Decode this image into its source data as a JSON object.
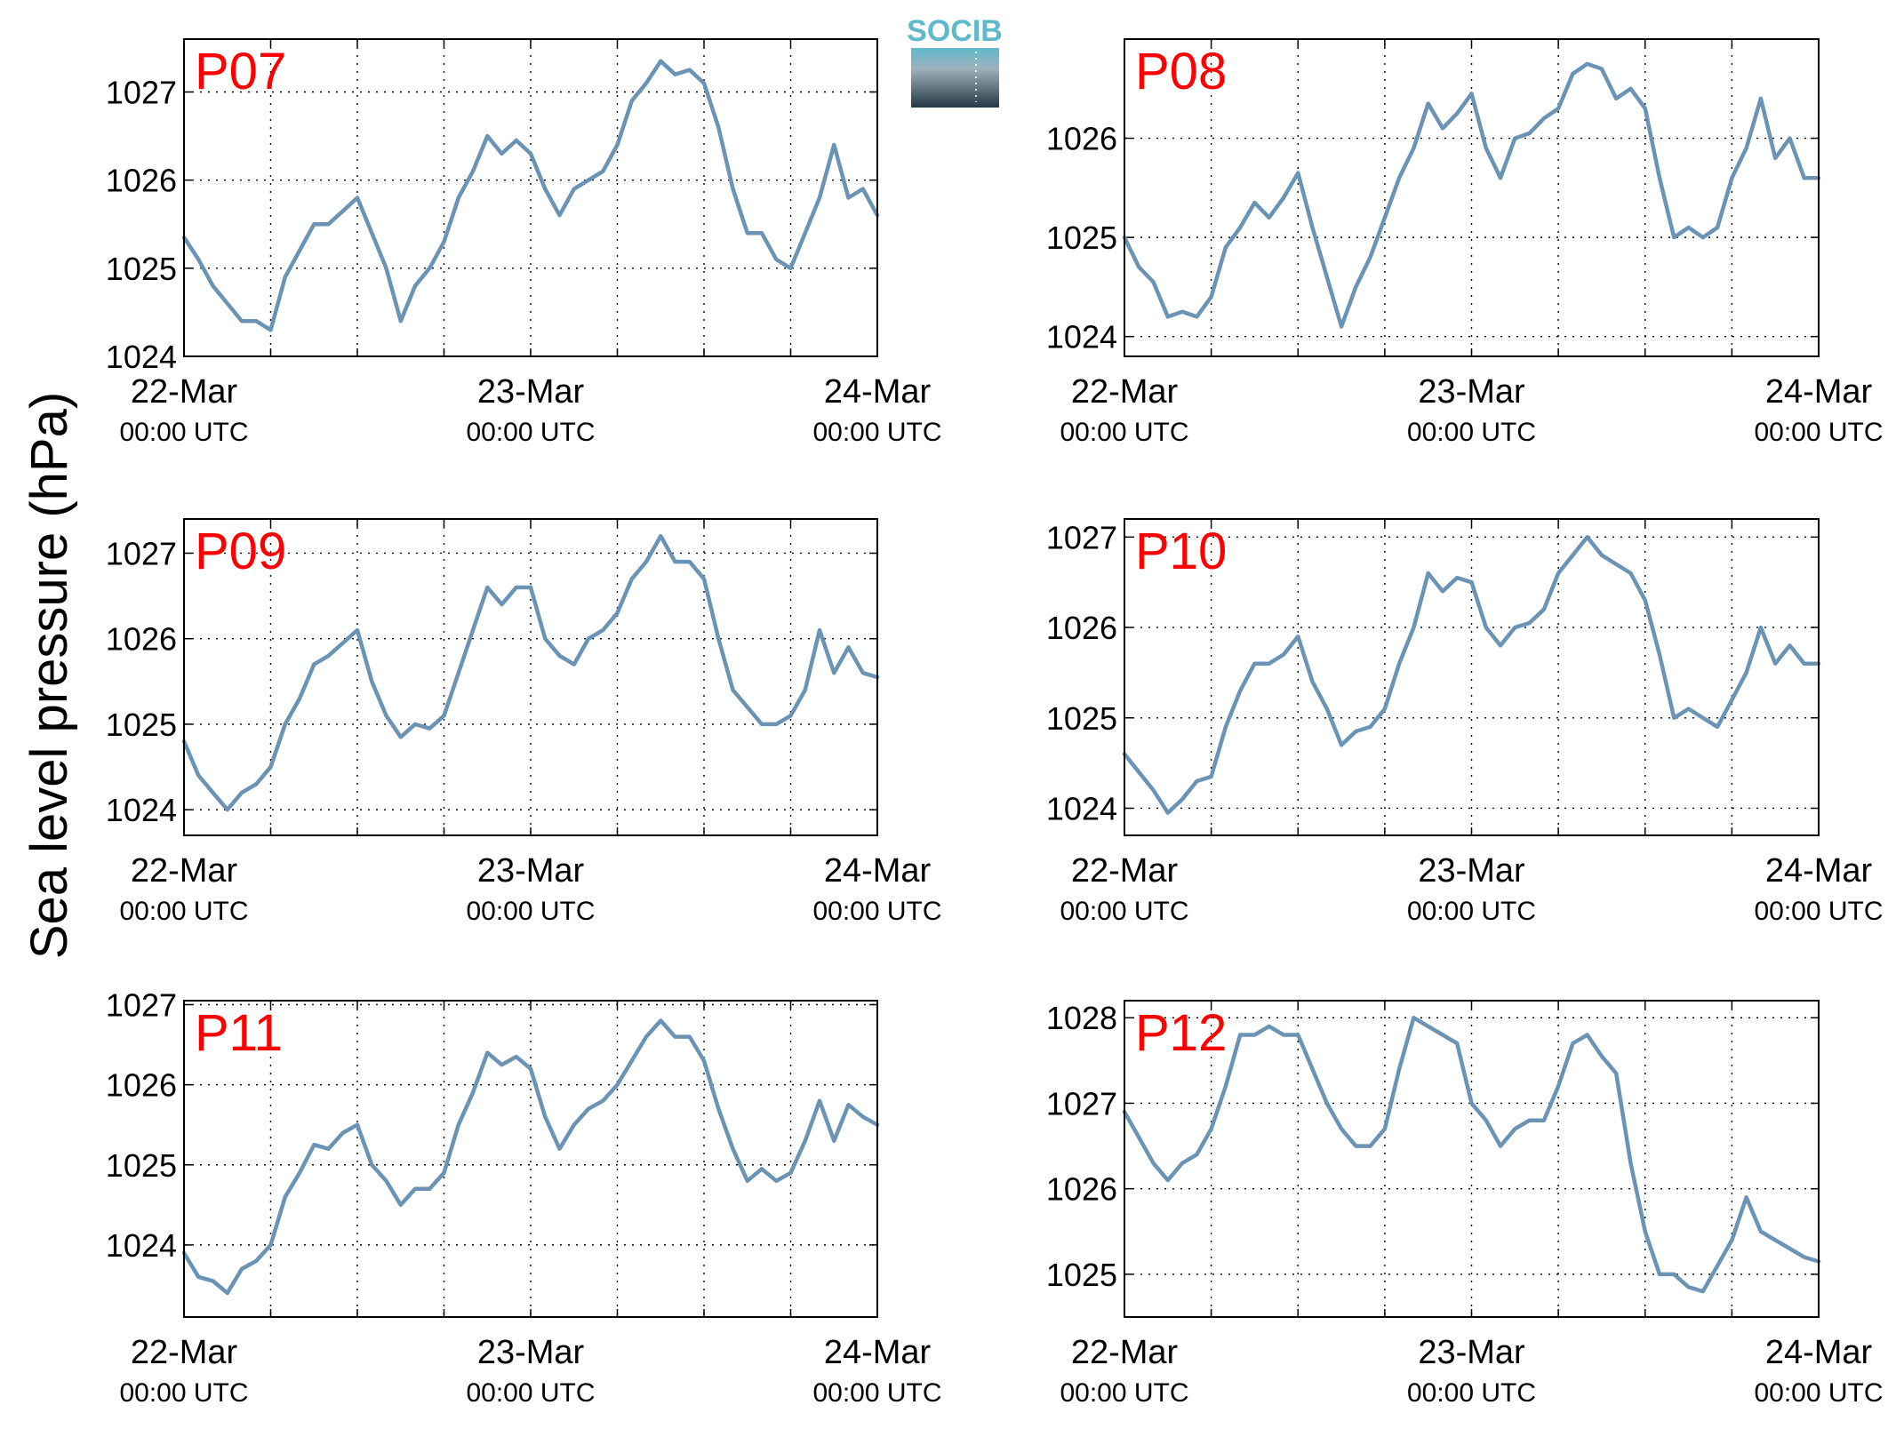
{
  "figure": {
    "ylabel": "Sea level pressure (hPa)",
    "logo_text": "SOCIB",
    "colors": {
      "line": "#6b93b5",
      "title": "#ff0000",
      "logo_top": "#5fb9cc",
      "logo_bottom": "#233844"
    }
  },
  "chart_data": [
    {
      "type": "line",
      "title": "P07",
      "x_ticks": [
        {
          "main": "22-Mar",
          "sub": "00:00 UTC"
        },
        {
          "main": "23-Mar",
          "sub": "00:00 UTC"
        },
        {
          "main": "24-Mar",
          "sub": "00:00 UTC"
        }
      ],
      "xlim_hours": [
        0,
        48
      ],
      "ylim": [
        1024,
        1027.6
      ],
      "y_ticks": [
        1024,
        1025,
        1026,
        1027
      ],
      "grid": true,
      "series": [
        {
          "x_hours": [
            0,
            1,
            2,
            3,
            4,
            5,
            6,
            7,
            8,
            9,
            10,
            11,
            12,
            13,
            14,
            15,
            16,
            17,
            18,
            19,
            20,
            21,
            22,
            23,
            24,
            25,
            26,
            27,
            28,
            29,
            30,
            31,
            32,
            33,
            34,
            35,
            36,
            37,
            38,
            39,
            40,
            41,
            42,
            43,
            44,
            45,
            46,
            47,
            48
          ],
          "values": [
            1025.35,
            1025.1,
            1024.8,
            1024.6,
            1024.4,
            1024.4,
            1024.3,
            1024.9,
            1025.2,
            1025.5,
            1025.5,
            1025.65,
            1025.8,
            1025.4,
            1025.0,
            1024.4,
            1024.8,
            1025.0,
            1025.3,
            1025.8,
            1026.1,
            1026.5,
            1026.3,
            1026.45,
            1026.3,
            1025.9,
            1025.6,
            1025.9,
            1026.0,
            1026.1,
            1026.4,
            1026.9,
            1027.1,
            1027.35,
            1027.2,
            1027.25,
            1027.1,
            1026.6,
            1025.9,
            1025.4,
            1025.4,
            1025.1,
            1025.0,
            1025.4,
            1025.8,
            1026.4,
            1025.8,
            1025.9,
            1025.6
          ]
        }
      ]
    },
    {
      "type": "line",
      "title": "P08",
      "x_ticks": [
        {
          "main": "22-Mar",
          "sub": "00:00 UTC"
        },
        {
          "main": "23-Mar",
          "sub": "00:00 UTC"
        },
        {
          "main": "24-Mar",
          "sub": "00:00 UTC"
        }
      ],
      "xlim_hours": [
        0,
        48
      ],
      "ylim": [
        1023.8,
        1027
      ],
      "y_ticks": [
        1024,
        1025,
        1026
      ],
      "grid": true,
      "series": [
        {
          "x_hours": [
            0,
            1,
            2,
            3,
            4,
            5,
            6,
            7,
            8,
            9,
            10,
            11,
            12,
            13,
            14,
            15,
            16,
            17,
            18,
            19,
            20,
            21,
            22,
            23,
            24,
            25,
            26,
            27,
            28,
            29,
            30,
            31,
            32,
            33,
            34,
            35,
            36,
            37,
            38,
            39,
            40,
            41,
            42,
            43,
            44,
            45,
            46,
            47,
            48
          ],
          "values": [
            1025.0,
            1024.7,
            1024.55,
            1024.2,
            1024.25,
            1024.2,
            1024.4,
            1024.9,
            1025.1,
            1025.35,
            1025.2,
            1025.4,
            1025.65,
            1025.1,
            1024.6,
            1024.1,
            1024.5,
            1024.8,
            1025.2,
            1025.6,
            1025.9,
            1026.35,
            1026.1,
            1026.25,
            1026.45,
            1025.9,
            1025.6,
            1026.0,
            1026.05,
            1026.2,
            1026.3,
            1026.65,
            1026.75,
            1026.7,
            1026.4,
            1026.5,
            1026.3,
            1025.6,
            1025.0,
            1025.1,
            1025.0,
            1025.1,
            1025.6,
            1025.9,
            1026.4,
            1025.8,
            1026.0,
            1025.6,
            1025.6
          ]
        }
      ]
    },
    {
      "type": "line",
      "title": "P09",
      "x_ticks": [
        {
          "main": "22-Mar",
          "sub": "00:00 UTC"
        },
        {
          "main": "23-Mar",
          "sub": "00:00 UTC"
        },
        {
          "main": "24-Mar",
          "sub": "00:00 UTC"
        }
      ],
      "xlim_hours": [
        0,
        48
      ],
      "ylim": [
        1023.7,
        1027.4
      ],
      "y_ticks": [
        1024,
        1025,
        1026,
        1027
      ],
      "grid": true,
      "series": [
        {
          "x_hours": [
            0,
            1,
            2,
            3,
            4,
            5,
            6,
            7,
            8,
            9,
            10,
            11,
            12,
            13,
            14,
            15,
            16,
            17,
            18,
            19,
            20,
            21,
            22,
            23,
            24,
            25,
            26,
            27,
            28,
            29,
            30,
            31,
            32,
            33,
            34,
            35,
            36,
            37,
            38,
            39,
            40,
            41,
            42,
            43,
            44,
            45,
            46,
            47,
            48
          ],
          "values": [
            1024.8,
            1024.4,
            1024.2,
            1024.0,
            1024.2,
            1024.3,
            1024.5,
            1025.0,
            1025.3,
            1025.7,
            1025.8,
            1025.95,
            1026.1,
            1025.5,
            1025.1,
            1024.85,
            1025.0,
            1024.95,
            1025.1,
            1025.6,
            1026.1,
            1026.6,
            1026.4,
            1026.6,
            1026.6,
            1026.0,
            1025.8,
            1025.7,
            1026.0,
            1026.1,
            1026.3,
            1026.7,
            1026.9,
            1027.2,
            1026.9,
            1026.9,
            1026.7,
            1026.0,
            1025.4,
            1025.2,
            1025.0,
            1025.0,
            1025.1,
            1025.4,
            1026.1,
            1025.6,
            1025.9,
            1025.6,
            1025.55
          ]
        }
      ]
    },
    {
      "type": "line",
      "title": "P10",
      "x_ticks": [
        {
          "main": "22-Mar",
          "sub": "00:00 UTC"
        },
        {
          "main": "23-Mar",
          "sub": "00:00 UTC"
        },
        {
          "main": "24-Mar",
          "sub": "00:00 UTC"
        }
      ],
      "xlim_hours": [
        0,
        48
      ],
      "ylim": [
        1023.7,
        1027.2
      ],
      "y_ticks": [
        1024,
        1025,
        1026,
        1027
      ],
      "grid": true,
      "series": [
        {
          "x_hours": [
            0,
            1,
            2,
            3,
            4,
            5,
            6,
            7,
            8,
            9,
            10,
            11,
            12,
            13,
            14,
            15,
            16,
            17,
            18,
            19,
            20,
            21,
            22,
            23,
            24,
            25,
            26,
            27,
            28,
            29,
            30,
            31,
            32,
            33,
            34,
            35,
            36,
            37,
            38,
            39,
            40,
            41,
            42,
            43,
            44,
            45,
            46,
            47,
            48
          ],
          "values": [
            1024.6,
            1024.4,
            1024.2,
            1023.95,
            1024.1,
            1024.3,
            1024.35,
            1024.9,
            1025.3,
            1025.6,
            1025.6,
            1025.7,
            1025.9,
            1025.4,
            1025.1,
            1024.7,
            1024.85,
            1024.9,
            1025.1,
            1025.6,
            1026.0,
            1026.6,
            1026.4,
            1026.55,
            1026.5,
            1026.0,
            1025.8,
            1026.0,
            1026.05,
            1026.2,
            1026.6,
            1026.8,
            1027.0,
            1026.8,
            1026.7,
            1026.6,
            1026.3,
            1025.7,
            1025.0,
            1025.1,
            1025.0,
            1024.9,
            1025.2,
            1025.5,
            1026.0,
            1025.6,
            1025.8,
            1025.6,
            1025.6
          ]
        }
      ]
    },
    {
      "type": "line",
      "title": "P11",
      "x_ticks": [
        {
          "main": "22-Mar",
          "sub": "00:00 UTC"
        },
        {
          "main": "23-Mar",
          "sub": "00:00 UTC"
        },
        {
          "main": "24-Mar",
          "sub": "00:00 UTC"
        }
      ],
      "xlim_hours": [
        0,
        48
      ],
      "ylim": [
        1023.1,
        1027.05
      ],
      "y_ticks": [
        1024,
        1025,
        1026,
        1027
      ],
      "grid": true,
      "series": [
        {
          "x_hours": [
            0,
            1,
            2,
            3,
            4,
            5,
            6,
            7,
            8,
            9,
            10,
            11,
            12,
            13,
            14,
            15,
            16,
            17,
            18,
            19,
            20,
            21,
            22,
            23,
            24,
            25,
            26,
            27,
            28,
            29,
            30,
            31,
            32,
            33,
            34,
            35,
            36,
            37,
            38,
            39,
            40,
            41,
            42,
            43,
            44,
            45,
            46,
            47,
            48
          ],
          "values": [
            1023.9,
            1023.6,
            1023.55,
            1023.4,
            1023.7,
            1023.8,
            1024.0,
            1024.6,
            1024.9,
            1025.25,
            1025.2,
            1025.4,
            1025.5,
            1025.0,
            1024.8,
            1024.5,
            1024.7,
            1024.7,
            1024.9,
            1025.5,
            1025.9,
            1026.4,
            1026.25,
            1026.35,
            1026.2,
            1025.6,
            1025.2,
            1025.5,
            1025.7,
            1025.8,
            1026.0,
            1026.3,
            1026.6,
            1026.8,
            1026.6,
            1026.6,
            1026.3,
            1025.7,
            1025.2,
            1024.8,
            1024.95,
            1024.8,
            1024.9,
            1025.3,
            1025.8,
            1025.3,
            1025.75,
            1025.6,
            1025.5
          ]
        }
      ]
    },
    {
      "type": "line",
      "title": "P12",
      "x_ticks": [
        {
          "main": "22-Mar",
          "sub": "00:00 UTC"
        },
        {
          "main": "23-Mar",
          "sub": "00:00 UTC"
        },
        {
          "main": "24-Mar",
          "sub": "00:00 UTC"
        }
      ],
      "xlim_hours": [
        0,
        48
      ],
      "ylim": [
        1024.5,
        1028.2
      ],
      "y_ticks": [
        1025,
        1026,
        1027,
        1028
      ],
      "grid": true,
      "series": [
        {
          "x_hours": [
            0,
            1,
            2,
            3,
            4,
            5,
            6,
            7,
            8,
            9,
            10,
            11,
            12,
            13,
            14,
            15,
            16,
            17,
            18,
            19,
            20,
            21,
            22,
            23,
            24,
            25,
            26,
            27,
            28,
            29,
            30,
            31,
            32,
            33,
            34,
            35,
            36,
            37,
            38,
            39,
            40,
            41,
            42,
            43,
            44,
            45,
            46,
            47,
            48
          ],
          "values": [
            1026.9,
            1026.6,
            1026.3,
            1026.1,
            1026.3,
            1026.4,
            1026.7,
            1027.2,
            1027.8,
            1027.8,
            1027.9,
            1027.8,
            1027.8,
            1027.4,
            1027.0,
            1026.7,
            1026.5,
            1026.5,
            1026.7,
            1027.4,
            1028.0,
            1027.9,
            1027.8,
            1027.7,
            1027.0,
            1026.8,
            1026.5,
            1026.7,
            1026.8,
            1026.8,
            1027.2,
            1027.7,
            1027.8,
            1027.55,
            1027.35,
            1026.3,
            1025.5,
            1025.0,
            1025.0,
            1024.85,
            1024.8,
            1025.1,
            1025.4,
            1025.9,
            1025.5,
            1025.4,
            1025.3,
            1025.2,
            1025.15
          ]
        }
      ]
    }
  ]
}
